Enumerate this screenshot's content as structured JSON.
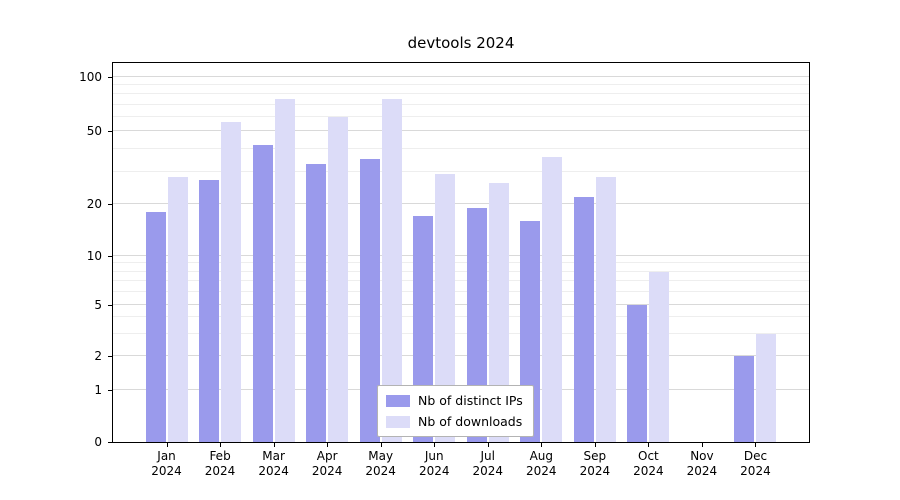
{
  "chart_data": {
    "type": "bar",
    "title": "devtools 2024",
    "categories": [
      "Jan",
      "Feb",
      "Mar",
      "Apr",
      "May",
      "Jun",
      "Jul",
      "Aug",
      "Sep",
      "Oct",
      "Nov",
      "Dec"
    ],
    "year_line": "2024",
    "series": [
      {
        "name": "Nb of distinct IPs",
        "color": "#9a9aec",
        "values": [
          18,
          27,
          42,
          33,
          35,
          17,
          19,
          16,
          22,
          5,
          0,
          2
        ]
      },
      {
        "name": "Nb of downloads",
        "color": "#dcdcf8",
        "values": [
          28,
          56,
          75,
          60,
          75,
          29,
          26,
          36,
          28,
          8,
          0,
          3
        ]
      }
    ],
    "yscale": "symlog",
    "yticks": [
      0,
      1,
      2,
      5,
      10,
      20,
      50,
      100
    ],
    "minor_yticks": [
      3,
      4,
      6,
      7,
      8,
      9,
      30,
      40,
      60,
      70,
      80,
      90
    ],
    "ylim": [
      0,
      120
    ],
    "grid": true,
    "legend_position": "lower center",
    "xlabel": "",
    "ylabel": ""
  }
}
